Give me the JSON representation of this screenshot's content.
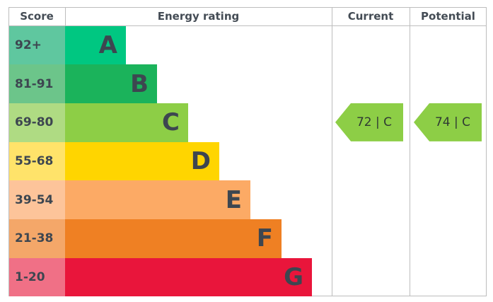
{
  "header": {
    "score": "Score",
    "energy_rating": "Energy rating",
    "current": "Current",
    "potential": "Potential"
  },
  "chart_data": {
    "type": "table",
    "bands": [
      {
        "letter": "A",
        "range": "92+",
        "color": "#00c781",
        "score_color": "#5fc79f"
      },
      {
        "letter": "B",
        "range": "81-91",
        "color": "#1bb35b",
        "score_color": "#6cc58a"
      },
      {
        "letter": "C",
        "range": "69-80",
        "color": "#8dce46",
        "score_color": "#afdb83"
      },
      {
        "letter": "D",
        "range": "55-68",
        "color": "#ffd500",
        "score_color": "#ffe36a"
      },
      {
        "letter": "E",
        "range": "39-54",
        "color": "#fcaa65",
        "score_color": "#fdc49a"
      },
      {
        "letter": "F",
        "range": "21-38",
        "color": "#ef8023",
        "score_color": "#f4a769"
      },
      {
        "letter": "G",
        "range": "1-20",
        "color": "#e9153b",
        "score_color": "#f07086"
      }
    ],
    "current": {
      "value": 72,
      "band": "C",
      "label": "72 | C",
      "color": "#8dce46"
    },
    "potential": {
      "value": 74,
      "band": "C",
      "label": "74 | C",
      "color": "#8dce46"
    }
  }
}
